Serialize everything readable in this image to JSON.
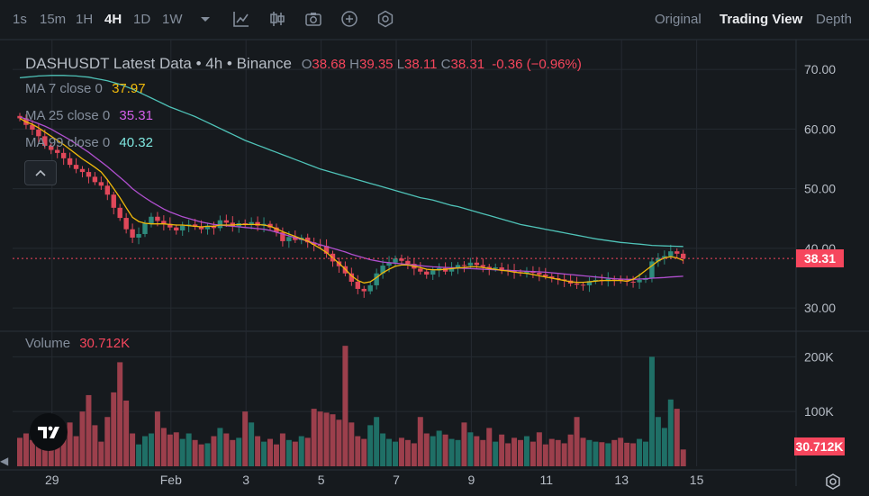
{
  "toolbar": {
    "timeframes": [
      "1s",
      "15m",
      "1H",
      "4H",
      "1D",
      "1W"
    ],
    "active_timeframe": "4H",
    "views": [
      "Original",
      "Trading View",
      "Depth"
    ],
    "active_view": "Trading View",
    "icons": [
      "timeframe-dropdown-icon",
      "indicators-icon",
      "chart-type-icon",
      "screenshot-icon",
      "add-icon",
      "settings-icon"
    ]
  },
  "legend": {
    "title": "DASHUSDT Latest Data • 4h • Binance",
    "o_label": "O",
    "o": "38.68",
    "h_label": "H",
    "h": "39.35",
    "l_label": "L",
    "l": "38.11",
    "c_label": "C",
    "c": "38.31",
    "change": "-0.36 (−0.96%)",
    "ma7_label": "MA 7 close 0",
    "ma7": "37.97",
    "ma25_label": "MA 25 close 0",
    "ma25": "35.31",
    "ma99_label": "MA 99 close 0",
    "ma99": "40.32",
    "volume_label": "Volume",
    "volume": "30.712K"
  },
  "price_tag": "38.31",
  "volume_tag": "30.712K",
  "colors": {
    "up": "#2e8b7d",
    "down": "#e0485a",
    "ma7": "#f0b90b",
    "ma25": "#b04fcf",
    "ma99": "#4fc3b8",
    "vol_up": "#1f6f66",
    "vol_down": "#9c3f4c"
  },
  "chart_data": {
    "type": "candlestick",
    "symbol": "DASHUSDT",
    "interval": "4h",
    "exchange": "Binance",
    "price_ticks": [
      "70.00",
      "60.00",
      "50.00",
      "40.00",
      "30.00"
    ],
    "price_tick_values": [
      70,
      60,
      50,
      40,
      30
    ],
    "ylim": [
      27,
      75
    ],
    "volume_ticks": [
      "200K",
      "100K"
    ],
    "volume_tick_values": [
      200000,
      100000
    ],
    "volume_max": 240000,
    "x_ticks": [
      "29",
      "Feb",
      "3",
      "5",
      "7",
      "9",
      "11",
      "13",
      "15"
    ],
    "x_tick_bar_index": [
      5,
      24,
      36,
      48,
      60,
      72,
      84,
      96,
      108
    ],
    "closes": [
      61.8,
      60.7,
      59.9,
      58.8,
      57.2,
      56.5,
      56.0,
      55.1,
      54.0,
      53.3,
      52.8,
      52.0,
      51.1,
      50.5,
      49.0,
      46.8,
      45.1,
      43.2,
      41.8,
      42.4,
      44.2,
      45.3,
      44.6,
      44.1,
      43.5,
      43.0,
      43.8,
      44.0,
      43.6,
      43.2,
      43.8,
      43.4,
      44.7,
      44.3,
      43.7,
      44.2,
      43.9,
      44.4,
      43.8,
      44.1,
      43.5,
      42.7,
      41.2,
      41.9,
      41.4,
      41.8,
      41.0,
      40.6,
      40.4,
      39.1,
      37.8,
      37.0,
      35.8,
      34.4,
      33.2,
      32.8,
      33.8,
      35.8,
      37.1,
      37.6,
      38.3,
      37.9,
      37.4,
      36.6,
      36.1,
      35.6,
      36.3,
      36.7,
      36.1,
      36.6,
      37.2,
      37.1,
      37.6,
      37.2,
      36.9,
      36.6,
      36.8,
      36.4,
      36.3,
      36.0,
      35.8,
      36.2,
      35.9,
      35.6,
      35.3,
      35.0,
      34.8,
      34.6,
      34.1,
      33.9,
      33.8,
      34.5,
      34.7,
      34.5,
      34.9,
      34.8,
      34.6,
      34.4,
      34.3,
      34.7,
      35.0,
      37.8,
      38.4,
      38.7,
      39.5,
      39.1,
      38.3
    ],
    "ma7": [
      61.8,
      61.2,
      60.8,
      60.2,
      59.5,
      58.8,
      58.1,
      57.4,
      56.6,
      55.8,
      55.0,
      54.3,
      53.6,
      52.8,
      51.5,
      50.0,
      48.5,
      46.8,
      45.2,
      44.5,
      44.2,
      44.1,
      44.1,
      44.1,
      44.0,
      43.9,
      43.9,
      43.8,
      43.7,
      43.6,
      43.7,
      43.7,
      43.9,
      43.9,
      43.9,
      44.0,
      44.0,
      44.0,
      44.0,
      43.9,
      43.7,
      43.3,
      42.8,
      42.4,
      42.0,
      41.6,
      41.2,
      40.6,
      40.0,
      39.3,
      38.4,
      37.5,
      36.5,
      35.4,
      34.6,
      34.2,
      34.4,
      35.1,
      35.9,
      36.5,
      37.0,
      37.2,
      37.2,
      37.0,
      36.8,
      36.5,
      36.4,
      36.4,
      36.5,
      36.6,
      36.7,
      36.8,
      36.9,
      36.9,
      36.8,
      36.6,
      36.5,
      36.3,
      36.2,
      36.0,
      35.9,
      35.8,
      35.6,
      35.4,
      35.2,
      35.0,
      34.8,
      34.6,
      34.4,
      34.3,
      34.3,
      34.4,
      34.5,
      34.6,
      34.6,
      34.6,
      34.6,
      34.5,
      34.8,
      35.5,
      36.3,
      37.1,
      37.9,
      38.4,
      38.6,
      38.4,
      37.97
    ],
    "ma25": [
      62.0,
      61.7,
      61.3,
      60.9,
      60.5,
      60.0,
      59.4,
      58.8,
      58.2,
      57.5,
      56.8,
      56.1,
      55.3,
      54.5,
      53.7,
      52.8,
      51.9,
      51.0,
      50.0,
      49.2,
      48.5,
      47.8,
      47.2,
      46.6,
      46.1,
      45.7,
      45.3,
      45.0,
      44.7,
      44.4,
      44.2,
      44.0,
      43.9,
      43.8,
      43.7,
      43.6,
      43.5,
      43.4,
      43.3,
      43.2,
      43.0,
      42.7,
      42.4,
      42.1,
      41.8,
      41.5,
      41.2,
      40.9,
      40.6,
      40.3,
      40.0,
      39.7,
      39.4,
      39.0,
      38.7,
      38.4,
      38.1,
      37.9,
      37.7,
      37.6,
      37.5,
      37.4,
      37.3,
      37.2,
      37.1,
      37.0,
      36.9,
      36.85,
      36.8,
      36.75,
      36.7,
      36.65,
      36.6,
      36.55,
      36.5,
      36.45,
      36.4,
      36.35,
      36.3,
      36.25,
      36.2,
      36.15,
      36.1,
      36.05,
      36.0,
      35.9,
      35.8,
      35.7,
      35.6,
      35.5,
      35.4,
      35.3,
      35.2,
      35.1,
      35.0,
      34.9,
      34.85,
      34.8,
      34.8,
      34.85,
      34.9,
      35.0,
      35.05,
      35.1,
      35.2,
      35.25,
      35.31
    ],
    "ma99": [
      68.6,
      68.7,
      68.8,
      68.9,
      68.95,
      69.0,
      69.0,
      69.0,
      68.95,
      68.9,
      68.8,
      68.7,
      68.5,
      68.3,
      68.1,
      67.8,
      67.5,
      67.1,
      66.7,
      66.2,
      65.7,
      65.2,
      64.7,
      64.2,
      63.7,
      63.3,
      62.9,
      62.5,
      62.1,
      61.6,
      61.1,
      60.6,
      60.1,
      59.6,
      59.1,
      58.6,
      58.1,
      57.7,
      57.3,
      56.9,
      56.5,
      56.1,
      55.7,
      55.3,
      54.9,
      54.5,
      54.1,
      53.7,
      53.3,
      53.0,
      52.7,
      52.4,
      52.1,
      51.8,
      51.5,
      51.2,
      50.9,
      50.6,
      50.3,
      50.0,
      49.7,
      49.4,
      49.1,
      48.8,
      48.5,
      48.3,
      48.1,
      47.8,
      47.5,
      47.2,
      47.0,
      46.7,
      46.4,
      46.1,
      45.8,
      45.5,
      45.2,
      44.9,
      44.6,
      44.3,
      44.0,
      43.8,
      43.6,
      43.4,
      43.2,
      43.0,
      42.8,
      42.6,
      42.4,
      42.2,
      42.0,
      41.8,
      41.6,
      41.45,
      41.3,
      41.15,
      41.0,
      40.9,
      40.8,
      40.7,
      40.6,
      40.5,
      40.45,
      40.4,
      40.37,
      40.34,
      40.32
    ],
    "volumes": [
      52000,
      60000,
      48000,
      70000,
      90000,
      45000,
      58000,
      62000,
      80000,
      55000,
      100000,
      130000,
      75000,
      45000,
      90000,
      135000,
      190000,
      120000,
      60000,
      40000,
      55000,
      60000,
      100000,
      70000,
      58000,
      62000,
      50000,
      60000,
      48000,
      40000,
      42000,
      55000,
      70000,
      60000,
      48000,
      52000,
      100000,
      80000,
      55000,
      45000,
      50000,
      40000,
      60000,
      48000,
      45000,
      55000,
      52000,
      105000,
      100000,
      98000,
      95000,
      85000,
      220000,
      80000,
      55000,
      50000,
      75000,
      90000,
      60000,
      50000,
      45000,
      52000,
      48000,
      42000,
      90000,
      60000,
      55000,
      65000,
      58000,
      50000,
      48000,
      80000,
      62000,
      55000,
      48000,
      70000,
      45000,
      58000,
      42000,
      52000,
      48000,
      55000,
      45000,
      62000,
      40000,
      50000,
      48000,
      42000,
      58000,
      90000,
      52000,
      48000,
      45000,
      44000,
      42000,
      48000,
      52000,
      43000,
      42000,
      50000,
      45000,
      200000,
      90000,
      70000,
      122000,
      105000,
      30712
    ]
  }
}
